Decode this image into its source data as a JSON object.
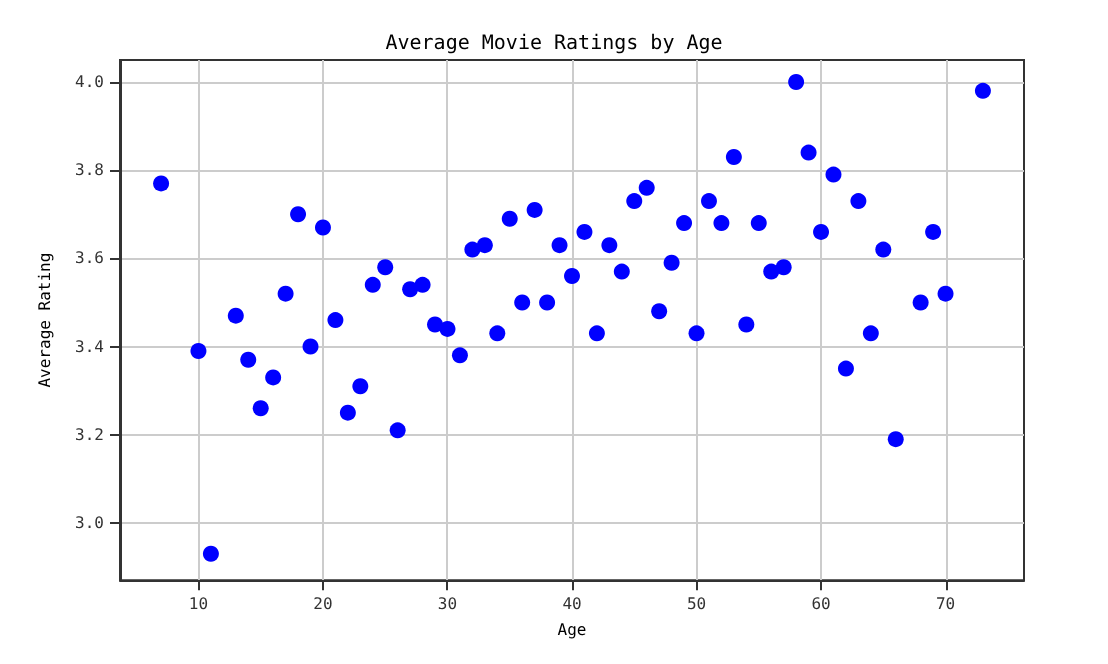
{
  "chart_data": {
    "type": "scatter",
    "title": "Average Movie Ratings by Age",
    "xlabel": "Age",
    "ylabel": "Average Rating",
    "x": [
      7,
      10,
      11,
      13,
      14,
      15,
      16,
      17,
      18,
      19,
      20,
      21,
      22,
      23,
      24,
      25,
      26,
      27,
      28,
      29,
      30,
      31,
      32,
      33,
      34,
      35,
      36,
      37,
      38,
      39,
      40,
      41,
      42,
      43,
      44,
      45,
      46,
      47,
      48,
      49,
      50,
      51,
      52,
      53,
      54,
      55,
      56,
      57,
      58,
      59,
      60,
      61,
      62,
      63,
      64,
      65,
      66,
      68,
      69,
      70,
      73
    ],
    "series": [
      {
        "color": "#0000ff",
        "values": [
          3.77,
          3.39,
          2.93,
          3.47,
          3.37,
          3.26,
          3.33,
          3.52,
          3.7,
          3.4,
          3.67,
          3.46,
          3.25,
          3.31,
          3.54,
          3.58,
          3.21,
          3.53,
          3.54,
          3.45,
          3.44,
          3.38,
          3.62,
          3.63,
          3.43,
          3.69,
          3.5,
          3.71,
          3.5,
          3.63,
          3.56,
          3.66,
          3.43,
          3.63,
          3.57,
          3.73,
          3.76,
          3.48,
          3.59,
          3.68,
          3.43,
          3.73,
          3.68,
          3.83,
          3.45,
          3.68,
          3.57,
          3.58,
          4.0,
          3.84,
          3.66,
          3.79,
          3.35,
          3.73,
          3.43,
          3.62,
          3.19,
          3.5,
          3.66,
          3.52,
          3.98
        ]
      }
    ],
    "xlim": [
      3.7,
      76.3
    ],
    "ylim": [
      2.87,
      4.05
    ],
    "xticks": [
      10,
      20,
      30,
      40,
      50,
      60,
      70
    ],
    "yticks": [
      {
        "value": 3.0,
        "label": "3.0"
      },
      3.2,
      3.4,
      3.6,
      3.8,
      {
        "value": 4.0,
        "label": "4.0"
      }
    ],
    "grid": true,
    "marker": "circle"
  }
}
